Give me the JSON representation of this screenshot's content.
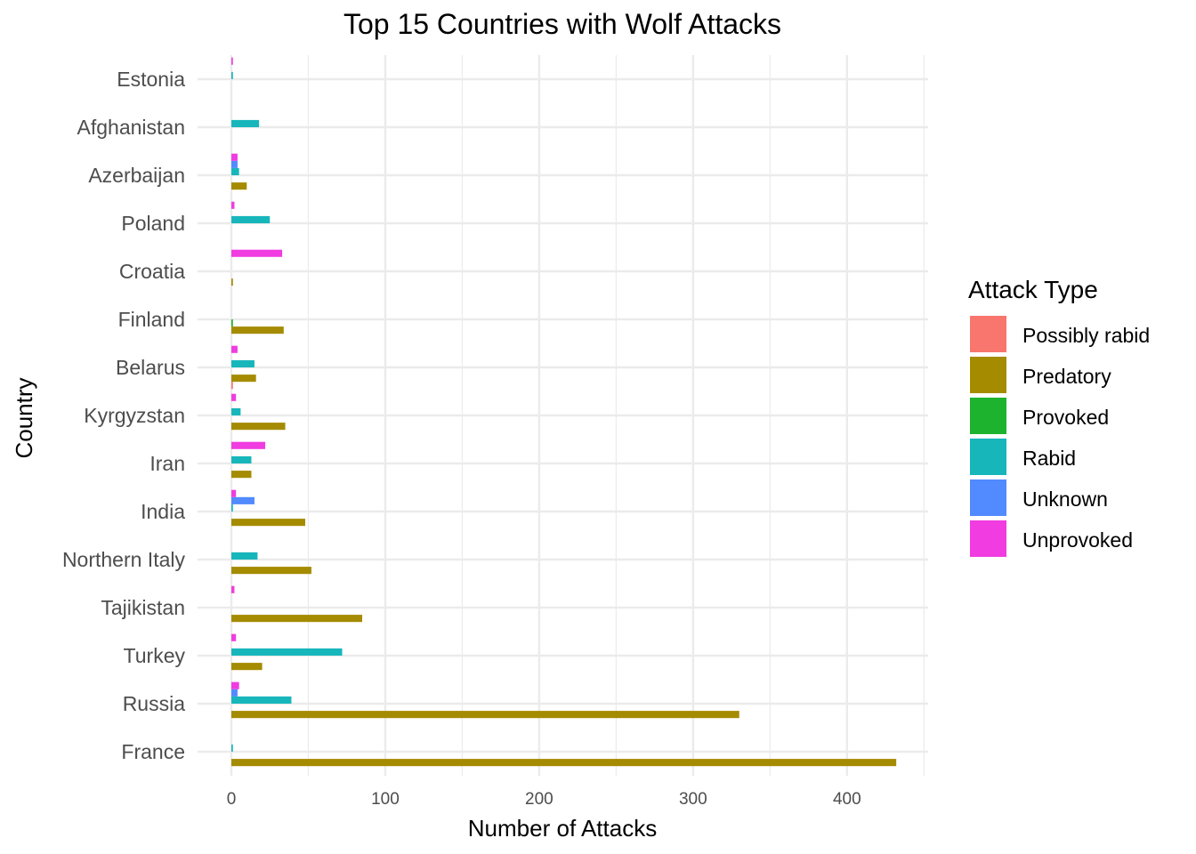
{
  "chart_data": {
    "type": "bar",
    "orientation": "horizontal",
    "grouping": "dodged",
    "title": "Top 15 Countries with Wolf Attacks",
    "xlabel": "Number of Attacks",
    "ylabel": "Country",
    "xlim": [
      0,
      450
    ],
    "x_ticks": [
      0,
      100,
      200,
      300,
      400
    ],
    "grid": true,
    "legend_title": "Attack Type",
    "legend_position": "right",
    "categories": [
      "France",
      "Russia",
      "Turkey",
      "Tajikistan",
      "Northern Italy",
      "India",
      "Iran",
      "Kyrgyzstan",
      "Belarus",
      "Finland",
      "Croatia",
      "Poland",
      "Azerbaijan",
      "Afghanistan",
      "Estonia"
    ],
    "series": [
      {
        "name": "Possibly rabid",
        "color": "#F8766D",
        "values": [
          0,
          0,
          0,
          0,
          0,
          0,
          0,
          0,
          1,
          0,
          0,
          0,
          0,
          0,
          0
        ]
      },
      {
        "name": "Predatory",
        "color": "#A58B00",
        "values": [
          432,
          330,
          20,
          85,
          52,
          48,
          13,
          35,
          16,
          34,
          1,
          0,
          10,
          0,
          0
        ]
      },
      {
        "name": "Provoked",
        "color": "#1DB32E",
        "values": [
          0,
          0,
          0,
          0,
          0,
          0,
          0,
          0,
          0,
          1,
          0,
          0,
          0,
          0,
          0
        ]
      },
      {
        "name": "Rabid",
        "color": "#17B6BB",
        "values": [
          1,
          39,
          72,
          0,
          17,
          1,
          13,
          6,
          15,
          0,
          0,
          25,
          5,
          18,
          1
        ]
      },
      {
        "name": "Unknown",
        "color": "#528AFF",
        "values": [
          0,
          4,
          0,
          0,
          0,
          15,
          0,
          0,
          0,
          0,
          0,
          0,
          4,
          0,
          0
        ]
      },
      {
        "name": "Unprovoked",
        "color": "#F03CE0",
        "values": [
          0,
          5,
          3,
          2,
          0,
          3,
          22,
          3,
          4,
          0,
          33,
          2,
          4,
          0,
          1
        ]
      }
    ]
  }
}
